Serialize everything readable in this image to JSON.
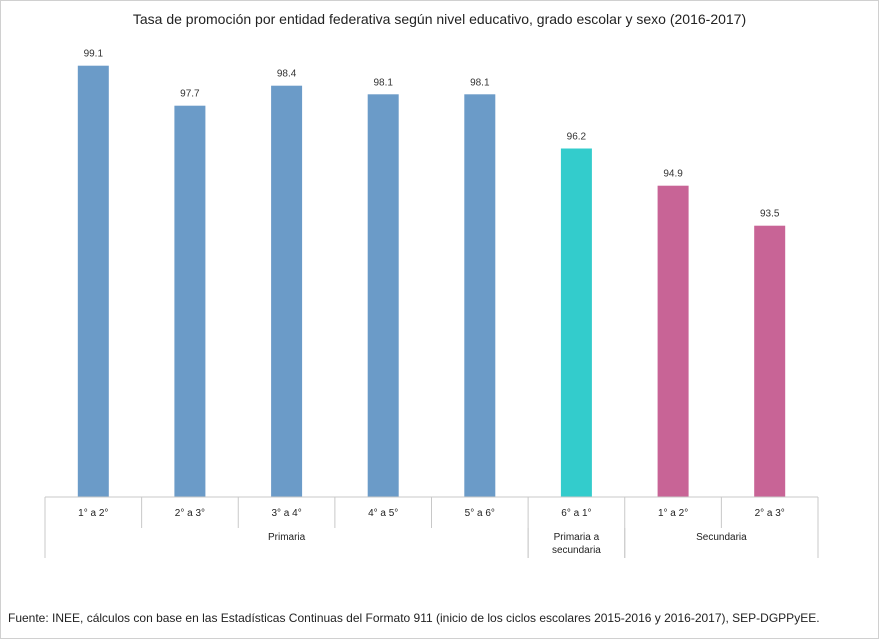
{
  "chart_data": {
    "type": "bar",
    "title": "Tasa de promoción  por entidad federativa según nivel educativo, grado escolar y sexo (2016-2017)",
    "xlabel": "",
    "ylabel": "",
    "ylim": [
      84,
      100
    ],
    "grid": false,
    "legend": "none",
    "categories": [
      "1° a 2°",
      "2° a 3°",
      "3° a 4°",
      "4° a 5°",
      "5° a 6°",
      "6° a 1°",
      "1° a 2°",
      "2° a 3°"
    ],
    "values": [
      99.1,
      97.7,
      98.4,
      98.1,
      98.1,
      96.2,
      94.9,
      93.5
    ],
    "value_labels": [
      "99.1",
      "97.7",
      "98.4",
      "98.1",
      "98.1",
      "96.2",
      "94.9",
      "93.5"
    ],
    "groups": [
      {
        "label_lines": [
          "Primaria"
        ],
        "start": 0,
        "end": 4,
        "color": "#6b9bc8"
      },
      {
        "label_lines": [
          "Primaria a",
          "secundaria"
        ],
        "start": 5,
        "end": 5,
        "color": "#33cccc"
      },
      {
        "label_lines": [
          "Secundaria"
        ],
        "start": 6,
        "end": 7,
        "color": "#c86496"
      }
    ]
  },
  "source": "Fuente: INEE, cálculos con base en las Estadísticas Continuas  del Formato 911 (inicio de los ciclos escolares 2015-2016  y 2016-2017), SEP-DGPPyEE."
}
